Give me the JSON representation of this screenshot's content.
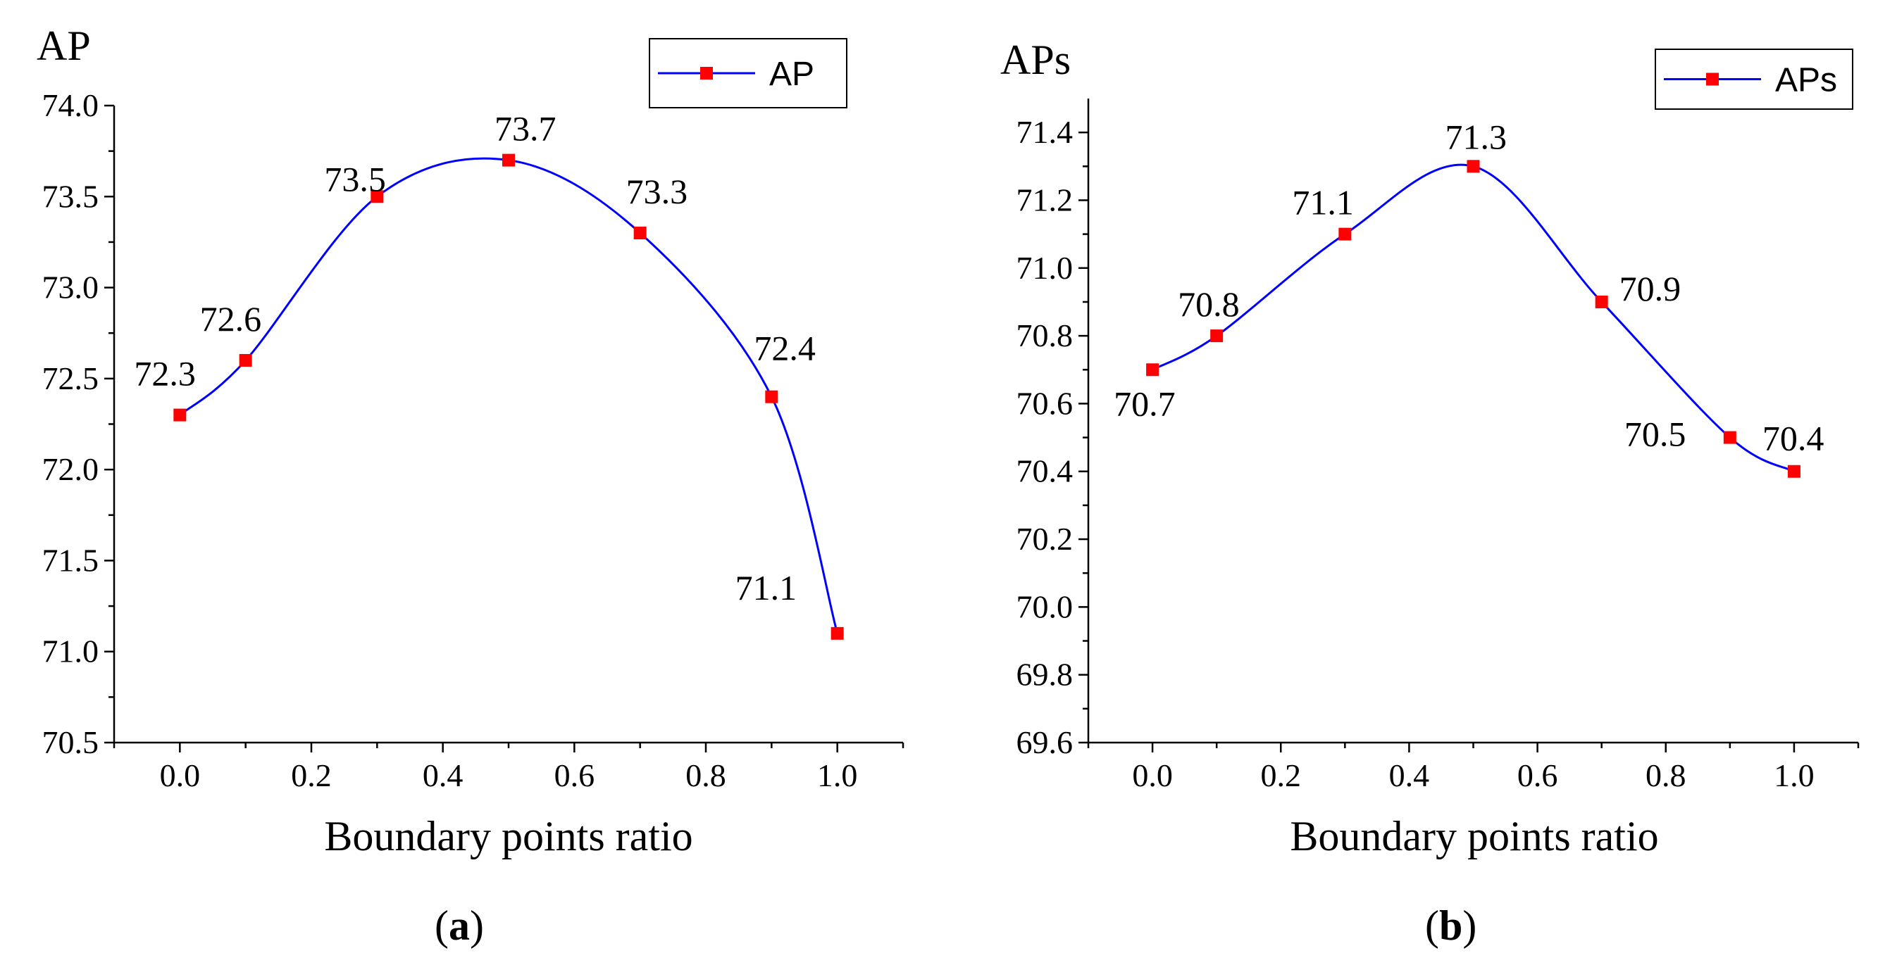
{
  "chart_data": [
    {
      "type": "line",
      "caption_letter": "a",
      "ylabel": "AP",
      "xlabel": "Boundary points ratio",
      "legend": "AP",
      "legend_position": "top-right",
      "x": [
        0.0,
        0.1,
        0.3,
        0.5,
        0.7,
        0.9,
        1.0
      ],
      "values": [
        72.3,
        72.6,
        73.5,
        73.7,
        73.3,
        72.4,
        71.1
      ],
      "data_labels": [
        "72.3",
        "72.6",
        "73.5",
        "73.7",
        "73.3",
        "72.4",
        "71.1"
      ],
      "xlim": [
        -0.1,
        1.1
      ],
      "ylim": [
        70.5,
        74.0
      ],
      "xticks": [
        0.0,
        0.2,
        0.4,
        0.6,
        0.8,
        1.0
      ],
      "xtick_labels": [
        "0.0",
        "0.2",
        "0.4",
        "0.6",
        "0.8",
        "1.0"
      ],
      "yticks": [
        70.5,
        71.0,
        71.5,
        72.0,
        72.5,
        73.0,
        73.5,
        74.0
      ],
      "ytick_labels": [
        "70.5",
        "71.0",
        "71.5",
        "72.0",
        "72.5",
        "73.0",
        "73.5",
        "74.0"
      ],
      "line_color": "#0000ff",
      "marker_color": "#ff0000"
    },
    {
      "type": "line",
      "caption_letter": "b",
      "ylabel": "APs",
      "xlabel": "Boundary points ratio",
      "legend": "APs",
      "legend_position": "top-right",
      "x": [
        0.0,
        0.1,
        0.3,
        0.5,
        0.7,
        0.9,
        1.0
      ],
      "values": [
        70.7,
        70.8,
        71.1,
        71.3,
        70.9,
        70.5,
        70.4
      ],
      "data_labels": [
        "70.7",
        "70.8",
        "71.1",
        "71.3",
        "70.9",
        "70.5",
        "70.4"
      ],
      "xlim": [
        -0.1,
        1.1
      ],
      "ylim": [
        69.6,
        71.5
      ],
      "xticks": [
        0.0,
        0.2,
        0.4,
        0.6,
        0.8,
        1.0
      ],
      "xtick_labels": [
        "0.0",
        "0.2",
        "0.4",
        "0.6",
        "0.8",
        "1.0"
      ],
      "yticks": [
        69.6,
        69.8,
        70.0,
        70.2,
        70.4,
        70.6,
        70.8,
        71.0,
        71.2,
        71.4
      ],
      "ytick_labels": [
        "69.6",
        "69.8",
        "70.0",
        "70.2",
        "70.4",
        "70.6",
        "70.8",
        "71.0",
        "71.2",
        "71.4"
      ],
      "line_color": "#0000ff",
      "marker_color": "#ff0000"
    }
  ]
}
